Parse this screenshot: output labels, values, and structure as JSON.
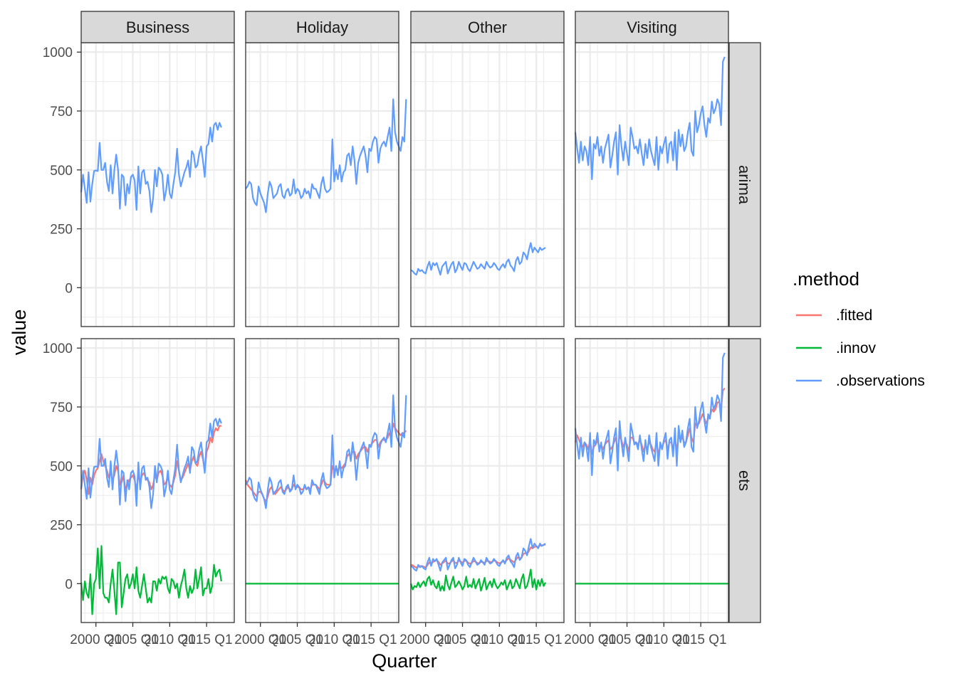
{
  "chart_data": {
    "type": "line",
    "facet_cols": [
      "Business",
      "Holiday",
      "Other",
      "Visiting"
    ],
    "facet_rows": [
      "arima",
      "ets"
    ],
    "xlabel": "Quarter",
    "ylabel": "value",
    "x_range": [
      1998,
      2018.75
    ],
    "x_ticks": [
      {
        "value": 2000,
        "label": "2000 Q1"
      },
      {
        "value": 2005,
        "label": "2005 Q1"
      },
      {
        "value": 2010,
        "label": "2010 Q1"
      },
      {
        "value": 2015,
        "label": "2015 Q1"
      }
    ],
    "ylim": [
      -165,
      1040
    ],
    "y_ticks": [
      0,
      250,
      500,
      750,
      1000
    ],
    "grid": true,
    "legend": {
      "title": ".method",
      "position": "right",
      "entries": [
        {
          "name": ".fitted",
          "color": "#F8766D"
        },
        {
          "name": ".innov",
          "color": "#00BA38"
        },
        {
          "name": ".observations",
          "color": "#619CFF"
        }
      ]
    },
    "series_start": 1998,
    "series_step": 0.25,
    "observations": {
      "Business": [
        405,
        480,
        420,
        360,
        490,
        365,
        440,
        495,
        498,
        495,
        615,
        500,
        500,
        530,
        450,
        410,
        520,
        400,
        500,
        565,
        500,
        335,
        480,
        470,
        350,
        440,
        400,
        470,
        480,
        455,
        330,
        515,
        400,
        490,
        500,
        440,
        450,
        410,
        320,
        380,
        500,
        430,
        510,
        500,
        480,
        370,
        410,
        480,
        400,
        380,
        440,
        490,
        590,
        480,
        430,
        460,
        490,
        510,
        540,
        470,
        580,
        565,
        510,
        520,
        570,
        600,
        540,
        470,
        600,
        610,
        680,
        620,
        690,
        700,
        670,
        700,
        680
      ],
      "Holiday": [
        420,
        430,
        450,
        440,
        380,
        360,
        350,
        430,
        400,
        380,
        360,
        320,
        400,
        450,
        430,
        380,
        390,
        400,
        430,
        440,
        390,
        380,
        410,
        420,
        390,
        400,
        460,
        400,
        420,
        410,
        380,
        390,
        420,
        400,
        410,
        380,
        440,
        420,
        420,
        400,
        380,
        440,
        470,
        420,
        405,
        410,
        420,
        630,
        450,
        500,
        460,
        520,
        450,
        490,
        500,
        560,
        570,
        520,
        600,
        540,
        440,
        530,
        560,
        580,
        600,
        560,
        490,
        590,
        580,
        620,
        640,
        630,
        530,
        590,
        610,
        620,
        600,
        640,
        680,
        580,
        800,
        660,
        620,
        600,
        580,
        640,
        620,
        800
      ],
      "Other": [
        75,
        70,
        60,
        55,
        80,
        70,
        75,
        65,
        60,
        90,
        110,
        75,
        105,
        95,
        105,
        80,
        55,
        90,
        100,
        110,
        60,
        80,
        100,
        110,
        65,
        80,
        110,
        90,
        75,
        105,
        100,
        80,
        70,
        90,
        110,
        95,
        80,
        85,
        100,
        90,
        80,
        110,
        95,
        85,
        90,
        105,
        95,
        80,
        75,
        90,
        100,
        85,
        110,
        120,
        95,
        85,
        70,
        115,
        130,
        100,
        110,
        150,
        140,
        120,
        160,
        190,
        150,
        170,
        160,
        150,
        170,
        160,
        165,
        170
      ],
      "Visiting": [
        660,
        590,
        530,
        620,
        540,
        600,
        580,
        520,
        640,
        460,
        610,
        590,
        640,
        560,
        600,
        530,
        590,
        620,
        650,
        510,
        560,
        620,
        660,
        480,
        690,
        600,
        540,
        620,
        570,
        520,
        680,
        640,
        590,
        600,
        570,
        630,
        570,
        520,
        610,
        550,
        630,
        580,
        550,
        520,
        640,
        500,
        600,
        570,
        610,
        640,
        530,
        610,
        620,
        540,
        660,
        500,
        670,
        600,
        650,
        580,
        600,
        660,
        700,
        580,
        560,
        750,
        660,
        690,
        740,
        770,
        690,
        640,
        720,
        700,
        790,
        740,
        760,
        800,
        780,
        690,
        960,
        980
      ]
    },
    "fitted_ets": {
      "Business": [
        400,
        460,
        480,
        440,
        380,
        450,
        420,
        460,
        480,
        490,
        520,
        550,
        520,
        500,
        480,
        450,
        470,
        440,
        460,
        500,
        480,
        420,
        430,
        460,
        400,
        420,
        440,
        450,
        460,
        440,
        400,
        460,
        430,
        460,
        470,
        450,
        440,
        430,
        400,
        420,
        460,
        440,
        470,
        480,
        460,
        420,
        430,
        450,
        420,
        410,
        430,
        460,
        520,
        480,
        440,
        450,
        470,
        490,
        510,
        480,
        520,
        540,
        510,
        500,
        540,
        560,
        530,
        480,
        560,
        580,
        620,
        600,
        640,
        660,
        650,
        670,
        670
      ],
      "Holiday": [
        440,
        420,
        410,
        400,
        390,
        380,
        370,
        390,
        390,
        380,
        360,
        350,
        370,
        400,
        410,
        390,
        380,
        390,
        400,
        410,
        400,
        390,
        400,
        410,
        400,
        400,
        420,
        410,
        410,
        410,
        400,
        400,
        410,
        400,
        410,
        400,
        420,
        420,
        420,
        410,
        400,
        420,
        440,
        430,
        420,
        420,
        420,
        500,
        480,
        490,
        480,
        500,
        490,
        500,
        510,
        540,
        550,
        540,
        560,
        560,
        530,
        550,
        560,
        570,
        580,
        580,
        560,
        580,
        590,
        600,
        610,
        610,
        580,
        600,
        610,
        610,
        610,
        620,
        640,
        620,
        680,
        660,
        650,
        640,
        630,
        640,
        640,
        650
      ],
      "Other": [
        80,
        78,
        72,
        68,
        72,
        74,
        75,
        72,
        70,
        78,
        90,
        82,
        92,
        96,
        100,
        92,
        80,
        86,
        92,
        98,
        85,
        86,
        94,
        100,
        88,
        88,
        98,
        95,
        88,
        96,
        98,
        90,
        84,
        88,
        96,
        94,
        88,
        86,
        92,
        92,
        88,
        96,
        96,
        92,
        92,
        98,
        96,
        90,
        86,
        90,
        95,
        92,
        100,
        108,
        102,
        96,
        90,
        102,
        112,
        108,
        110,
        126,
        130,
        126,
        138,
        154,
        150,
        156,
        158,
        156,
        162,
        162,
        164,
        166
      ],
      "Visiting": [
        600,
        630,
        610,
        590,
        580,
        600,
        590,
        570,
        610,
        550,
        580,
        590,
        610,
        580,
        590,
        570,
        590,
        600,
        610,
        570,
        580,
        600,
        620,
        560,
        630,
        610,
        580,
        600,
        590,
        560,
        620,
        620,
        600,
        600,
        590,
        610,
        590,
        560,
        590,
        570,
        600,
        590,
        570,
        560,
        600,
        550,
        580,
        580,
        600,
        610,
        570,
        600,
        600,
        570,
        620,
        560,
        630,
        610,
        620,
        600,
        600,
        630,
        660,
        620,
        600,
        680,
        670,
        680,
        700,
        720,
        700,
        680,
        700,
        710,
        740,
        730,
        740,
        770,
        770,
        740,
        820,
        830
      ]
    },
    "innov_ets": {
      "Business": [
        5,
        -70,
        10,
        -40,
        -60,
        40,
        -130,
        0,
        20,
        150,
        -20,
        160,
        -40,
        -60,
        -60,
        -80,
        0,
        60,
        -30,
        -130,
        90,
        90,
        -100,
        -40,
        20,
        40,
        -20,
        0,
        40,
        -20,
        70,
        -30,
        -60,
        -10,
        40,
        -20,
        -80,
        -60,
        -80,
        10,
        10,
        -30,
        20,
        0,
        30,
        20,
        30,
        -20,
        -40,
        20,
        10,
        -20,
        0,
        -60,
        -10,
        20,
        60,
        -20,
        -60,
        -10,
        -40,
        -20,
        60,
        -20,
        20,
        70,
        -50,
        -20,
        -20,
        20,
        -40,
        -10,
        80,
        30,
        50,
        60,
        10
      ],
      "Holiday": [
        0,
        0
      ],
      "Other": [
        0,
        -25,
        -10,
        -15,
        5,
        -15,
        0,
        10,
        -10,
        20,
        30,
        -5,
        15,
        -10,
        -20,
        10,
        -30,
        -10,
        -30,
        35,
        -5,
        -25,
        5,
        30,
        -15,
        -5,
        10,
        -5,
        -25,
        -10,
        30,
        -15,
        -5,
        -15,
        20,
        -20,
        0,
        20,
        -30,
        -5,
        25,
        -25,
        -5,
        10,
        -15,
        20,
        -5,
        -20,
        -10,
        5,
        -5,
        15,
        -25,
        -5,
        15,
        -20,
        -10,
        20,
        0,
        -20,
        20,
        40,
        -20,
        -10,
        20,
        60,
        -15,
        20,
        -25,
        15,
        -10,
        20,
        -10,
        5
      ]
    },
    "innov_constant": {
      "Holiday": {
        "value": 0,
        "x_range": [
          1998,
          2018.75
        ]
      },
      "Visiting": {
        "value": 0,
        "x_range": [
          1998,
          2018.75
        ]
      }
    }
  }
}
